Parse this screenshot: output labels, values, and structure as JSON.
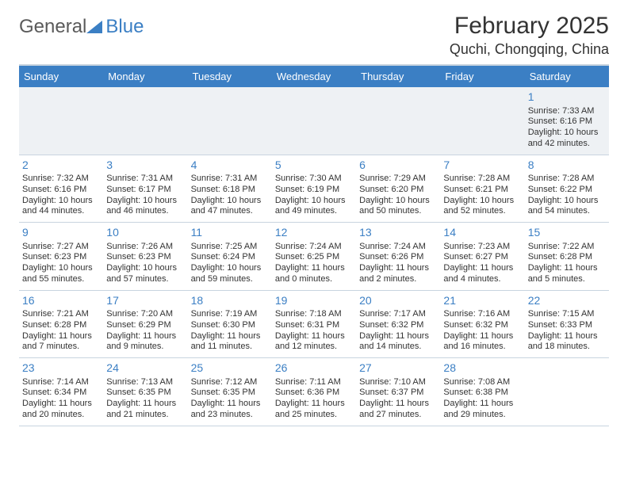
{
  "logo": {
    "part1": "General",
    "part2": "Blue"
  },
  "title": "February 2025",
  "location": "Quchi, Chongqing, China",
  "colors": {
    "accent": "#3b7fc4",
    "stripe": "#eef1f4",
    "border": "#c8d4df",
    "text": "#333333"
  },
  "dow": [
    "Sunday",
    "Monday",
    "Tuesday",
    "Wednesday",
    "Thursday",
    "Friday",
    "Saturday"
  ],
  "weeks": [
    [
      null,
      null,
      null,
      null,
      null,
      null,
      {
        "n": "1",
        "sr": "Sunrise: 7:33 AM",
        "ss": "Sunset: 6:16 PM",
        "dl": "Daylight: 10 hours and 42 minutes."
      }
    ],
    [
      {
        "n": "2",
        "sr": "Sunrise: 7:32 AM",
        "ss": "Sunset: 6:16 PM",
        "dl": "Daylight: 10 hours and 44 minutes."
      },
      {
        "n": "3",
        "sr": "Sunrise: 7:31 AM",
        "ss": "Sunset: 6:17 PM",
        "dl": "Daylight: 10 hours and 46 minutes."
      },
      {
        "n": "4",
        "sr": "Sunrise: 7:31 AM",
        "ss": "Sunset: 6:18 PM",
        "dl": "Daylight: 10 hours and 47 minutes."
      },
      {
        "n": "5",
        "sr": "Sunrise: 7:30 AM",
        "ss": "Sunset: 6:19 PM",
        "dl": "Daylight: 10 hours and 49 minutes."
      },
      {
        "n": "6",
        "sr": "Sunrise: 7:29 AM",
        "ss": "Sunset: 6:20 PM",
        "dl": "Daylight: 10 hours and 50 minutes."
      },
      {
        "n": "7",
        "sr": "Sunrise: 7:28 AM",
        "ss": "Sunset: 6:21 PM",
        "dl": "Daylight: 10 hours and 52 minutes."
      },
      {
        "n": "8",
        "sr": "Sunrise: 7:28 AM",
        "ss": "Sunset: 6:22 PM",
        "dl": "Daylight: 10 hours and 54 minutes."
      }
    ],
    [
      {
        "n": "9",
        "sr": "Sunrise: 7:27 AM",
        "ss": "Sunset: 6:23 PM",
        "dl": "Daylight: 10 hours and 55 minutes."
      },
      {
        "n": "10",
        "sr": "Sunrise: 7:26 AM",
        "ss": "Sunset: 6:23 PM",
        "dl": "Daylight: 10 hours and 57 minutes."
      },
      {
        "n": "11",
        "sr": "Sunrise: 7:25 AM",
        "ss": "Sunset: 6:24 PM",
        "dl": "Daylight: 10 hours and 59 minutes."
      },
      {
        "n": "12",
        "sr": "Sunrise: 7:24 AM",
        "ss": "Sunset: 6:25 PM",
        "dl": "Daylight: 11 hours and 0 minutes."
      },
      {
        "n": "13",
        "sr": "Sunrise: 7:24 AM",
        "ss": "Sunset: 6:26 PM",
        "dl": "Daylight: 11 hours and 2 minutes."
      },
      {
        "n": "14",
        "sr": "Sunrise: 7:23 AM",
        "ss": "Sunset: 6:27 PM",
        "dl": "Daylight: 11 hours and 4 minutes."
      },
      {
        "n": "15",
        "sr": "Sunrise: 7:22 AM",
        "ss": "Sunset: 6:28 PM",
        "dl": "Daylight: 11 hours and 5 minutes."
      }
    ],
    [
      {
        "n": "16",
        "sr": "Sunrise: 7:21 AM",
        "ss": "Sunset: 6:28 PM",
        "dl": "Daylight: 11 hours and 7 minutes."
      },
      {
        "n": "17",
        "sr": "Sunrise: 7:20 AM",
        "ss": "Sunset: 6:29 PM",
        "dl": "Daylight: 11 hours and 9 minutes."
      },
      {
        "n": "18",
        "sr": "Sunrise: 7:19 AM",
        "ss": "Sunset: 6:30 PM",
        "dl": "Daylight: 11 hours and 11 minutes."
      },
      {
        "n": "19",
        "sr": "Sunrise: 7:18 AM",
        "ss": "Sunset: 6:31 PM",
        "dl": "Daylight: 11 hours and 12 minutes."
      },
      {
        "n": "20",
        "sr": "Sunrise: 7:17 AM",
        "ss": "Sunset: 6:32 PM",
        "dl": "Daylight: 11 hours and 14 minutes."
      },
      {
        "n": "21",
        "sr": "Sunrise: 7:16 AM",
        "ss": "Sunset: 6:32 PM",
        "dl": "Daylight: 11 hours and 16 minutes."
      },
      {
        "n": "22",
        "sr": "Sunrise: 7:15 AM",
        "ss": "Sunset: 6:33 PM",
        "dl": "Daylight: 11 hours and 18 minutes."
      }
    ],
    [
      {
        "n": "23",
        "sr": "Sunrise: 7:14 AM",
        "ss": "Sunset: 6:34 PM",
        "dl": "Daylight: 11 hours and 20 minutes."
      },
      {
        "n": "24",
        "sr": "Sunrise: 7:13 AM",
        "ss": "Sunset: 6:35 PM",
        "dl": "Daylight: 11 hours and 21 minutes."
      },
      {
        "n": "25",
        "sr": "Sunrise: 7:12 AM",
        "ss": "Sunset: 6:35 PM",
        "dl": "Daylight: 11 hours and 23 minutes."
      },
      {
        "n": "26",
        "sr": "Sunrise: 7:11 AM",
        "ss": "Sunset: 6:36 PM",
        "dl": "Daylight: 11 hours and 25 minutes."
      },
      {
        "n": "27",
        "sr": "Sunrise: 7:10 AM",
        "ss": "Sunset: 6:37 PM",
        "dl": "Daylight: 11 hours and 27 minutes."
      },
      {
        "n": "28",
        "sr": "Sunrise: 7:08 AM",
        "ss": "Sunset: 6:38 PM",
        "dl": "Daylight: 11 hours and 29 minutes."
      },
      null
    ]
  ]
}
